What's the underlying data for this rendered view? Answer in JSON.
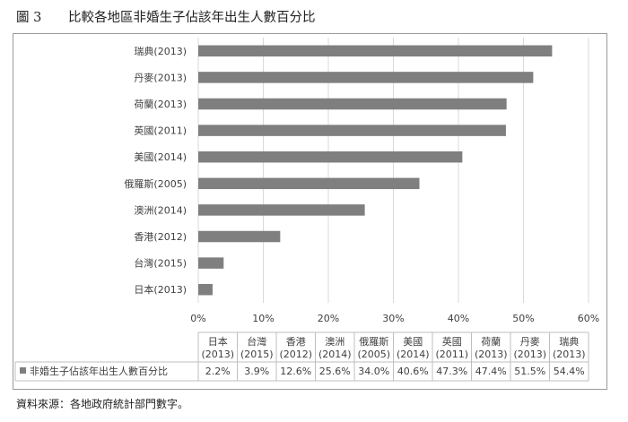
{
  "figure": {
    "number": "圖 3",
    "title": "比較各地區非婚生子佔該年出生人數百分比"
  },
  "source_note": "資料來源：各地政府統計部門數字。",
  "colors": {
    "bar": "#7f7f7f",
    "grid": "#d9d9d9",
    "table_border": "#bfbfbf",
    "text": "#3f3f3f"
  },
  "chart_data": {
    "type": "bar",
    "orientation": "horizontal",
    "categories": [
      "日本(2013)",
      "台灣(2015)",
      "香港(2012)",
      "澳洲(2014)",
      "俄羅斯(2005)",
      "美國(2014)",
      "英國(2011)",
      "荷蘭(2013)",
      "丹麥(2013)",
      "瑞典(2013)"
    ],
    "values": [
      2.2,
      3.9,
      12.6,
      25.6,
      34.0,
      40.6,
      47.3,
      47.4,
      51.5,
      54.4
    ],
    "xlim": [
      0,
      60
    ],
    "xticks": [
      "0%",
      "10%",
      "20%",
      "30%",
      "40%",
      "50%",
      "60%"
    ],
    "grid": true,
    "table": {
      "series_name": "非婚生子佔該年出生人數百分比",
      "regions": [
        "日本",
        "台灣",
        "香港",
        "澳洲",
        "俄羅斯",
        "美國",
        "英國",
        "荷蘭",
        "丹麥",
        "瑞典"
      ],
      "years": [
        "(2013)",
        "(2015)",
        "(2012)",
        "(2014)",
        "(2005)",
        "(2014)",
        "(2011)",
        "(2013)",
        "(2013)",
        "(2013)"
      ],
      "labels": [
        "2.2%",
        "3.9%",
        "12.6%",
        "25.6%",
        "34.0%",
        "40.6%",
        "47.3%",
        "47.4%",
        "51.5%",
        "54.4%"
      ]
    }
  }
}
